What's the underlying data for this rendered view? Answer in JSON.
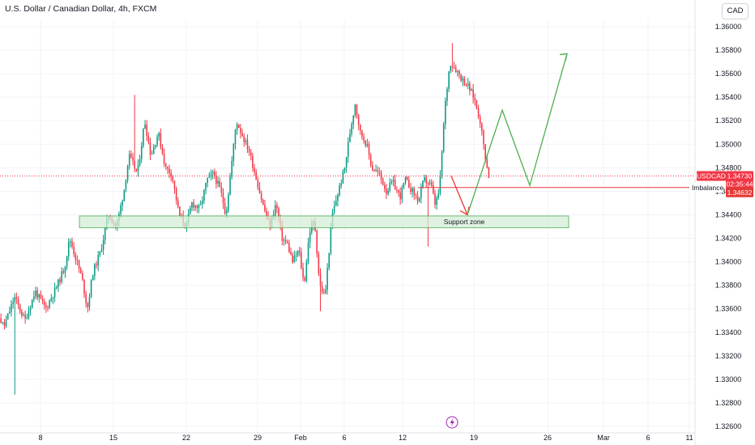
{
  "header": {
    "title": "U.S. Dollar / Canadian Dollar, 4h, FXCM",
    "currency_button": "CAD"
  },
  "colors": {
    "up": "#089981",
    "down": "#f23645",
    "grid": "#f0f3fa",
    "zone_fill": "#d4ecd5",
    "zone_stroke": "#4caf50",
    "arrow_green": "#4caf50",
    "arrow_red": "#e53935",
    "price_line": "#f23645",
    "imbalance_line": "#e53935",
    "event_icon": "#9c27b0"
  },
  "labels": {
    "support_zone": "Support zone",
    "imbalance": "Imbalance",
    "symbol": "USDCAD",
    "last_price": "1.34730",
    "countdown": "02:35:44",
    "imbalance_price": "1.34632"
  },
  "chart_data": {
    "type": "candlestick",
    "title": "U.S. Dollar / Canadian Dollar, 4h, FXCM",
    "y_ticks": [
      1.36,
      1.358,
      1.356,
      1.354,
      1.352,
      1.35,
      1.348,
      1.346,
      1.344,
      1.342,
      1.34,
      1.338,
      1.336,
      1.334,
      1.332,
      1.33,
      1.328,
      1.326
    ],
    "y_tick_labels": [
      "1.36000",
      "1.35800",
      "1.35600",
      "1.35400",
      "1.35200",
      "1.35000",
      "1.34800",
      "1.34600",
      "1.34400",
      "1.34200",
      "1.34000",
      "1.33800",
      "1.33600",
      "1.33400",
      "1.33200",
      "1.33000",
      "1.32800",
      "1.32600"
    ],
    "x_tick_labels": [
      "8",
      "15",
      "22",
      "29",
      "Feb",
      "6",
      "12",
      "19",
      "26",
      "Mar",
      "6",
      "11"
    ],
    "ylim": [
      1.3255,
      1.3615
    ],
    "grid": true,
    "last_price": 1.3473,
    "imbalance_price": 1.34632,
    "support_zone": {
      "low": 1.3429,
      "high": 1.3439,
      "label": "Support zone"
    },
    "projection_green": [
      [
        1.3463,
        1.3463
      ],
      [
        1.3495,
        1.3529
      ],
      [
        1.3465,
        1.3577
      ]
    ],
    "projection_red_to": 1.344,
    "candles": []
  }
}
